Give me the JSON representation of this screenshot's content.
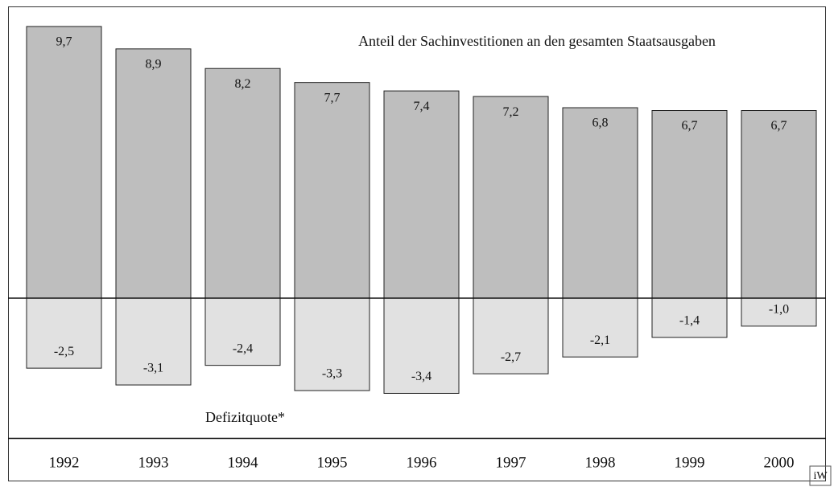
{
  "chart_data": {
    "type": "bar",
    "categories": [
      "1992",
      "1993",
      "1994",
      "1995",
      "1996",
      "1997",
      "1998",
      "1999",
      "2000"
    ],
    "series": [
      {
        "name": "Anteil der Sachinvestitionen an den gesamten Staatsausgaben",
        "color": "#bebebe",
        "values": [
          9.7,
          8.9,
          8.2,
          7.7,
          7.4,
          7.2,
          6.8,
          6.7,
          6.7
        ],
        "value_labels": [
          "9,7",
          "8,9",
          "8,2",
          "7,7",
          "7,4",
          "7,2",
          "6,8",
          "6,7",
          "6,7"
        ]
      },
      {
        "name": "Defizitquote*",
        "color": "#e1e1e1",
        "values": [
          -2.5,
          -3.1,
          -2.4,
          -3.3,
          -3.4,
          -2.7,
          -2.1,
          -1.4,
          -1.0
        ],
        "value_labels": [
          "-2,5",
          "-3,1",
          "-2,4",
          "-3,3",
          "-3,4",
          "-2,7",
          "-2,1",
          "-1,4",
          "-1,0"
        ]
      }
    ]
  }
}
